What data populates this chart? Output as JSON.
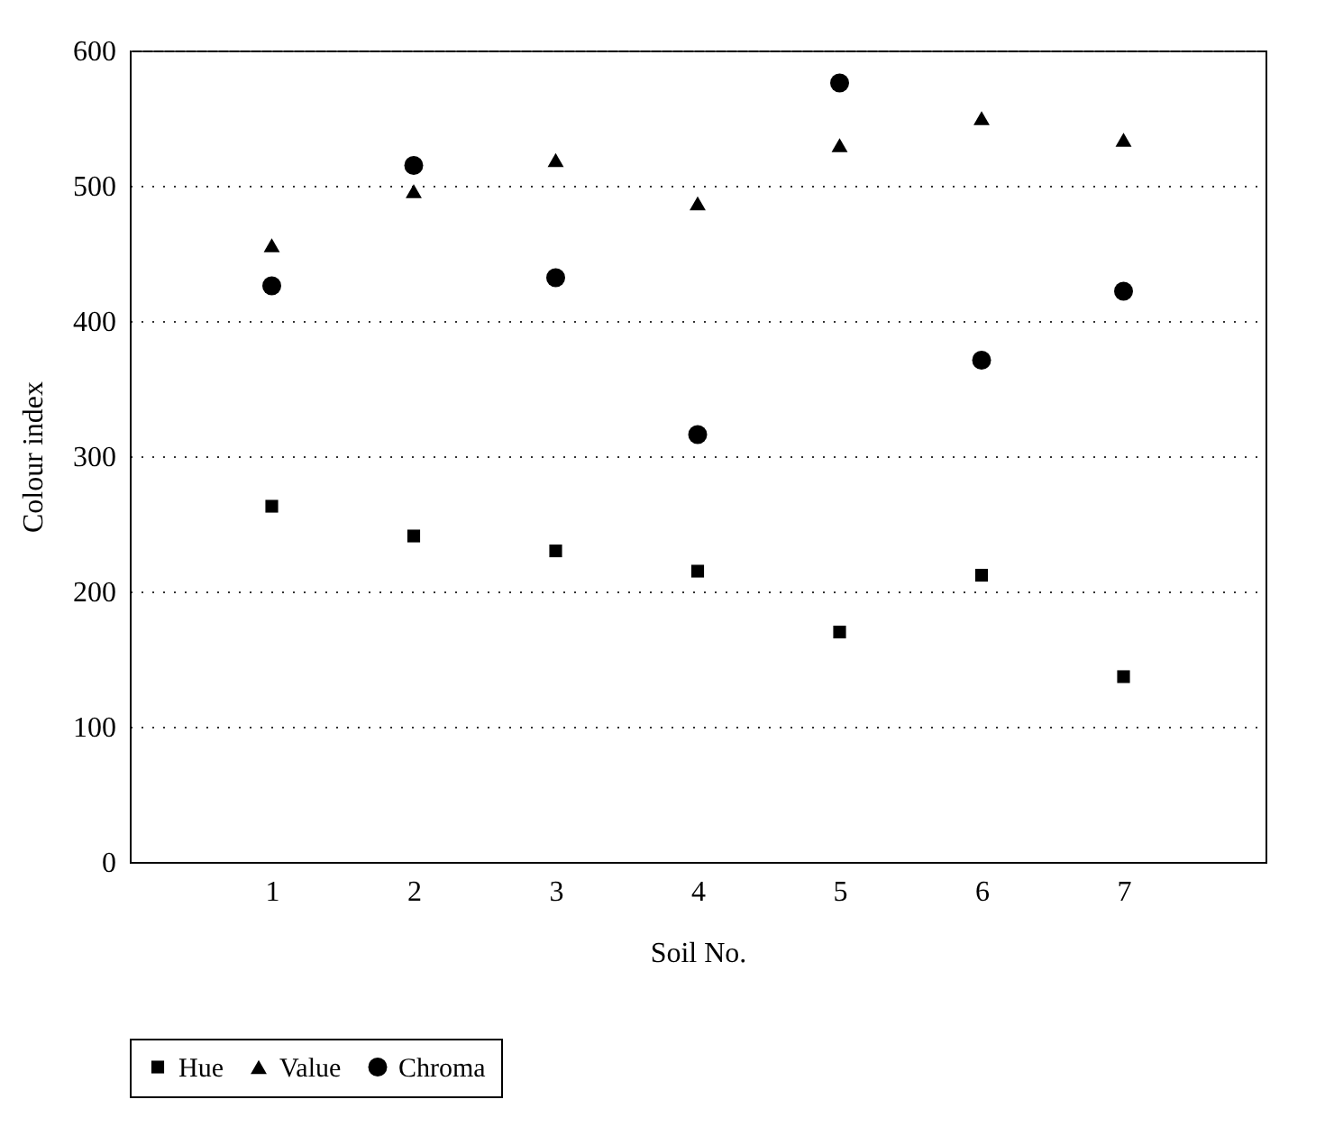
{
  "chart_data": {
    "type": "scatter",
    "xlabel": "Soil No.",
    "ylabel": "Colour index",
    "x": [
      1,
      2,
      3,
      4,
      5,
      6,
      7
    ],
    "xlim": [
      0,
      8
    ],
    "xticks": [
      1,
      2,
      3,
      4,
      5,
      6,
      7
    ],
    "ylim": [
      0,
      600
    ],
    "yticks": [
      0,
      100,
      200,
      300,
      400,
      500,
      600
    ],
    "grid": "y",
    "legend": "bottom",
    "series": [
      {
        "name": "Hue",
        "color": "#000000",
        "marker": "square",
        "values": [
          263,
          241,
          230,
          215,
          170,
          212,
          137
        ]
      },
      {
        "name": "Value",
        "color": "#000000",
        "marker": "triangle",
        "values": [
          456,
          496,
          519,
          487,
          530,
          550,
          534
        ]
      },
      {
        "name": "Chroma",
        "color": "#000000",
        "marker": "circle",
        "values": [
          426,
          515,
          432,
          316,
          576,
          371,
          422
        ]
      }
    ]
  }
}
